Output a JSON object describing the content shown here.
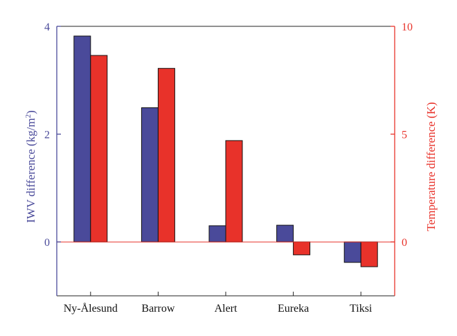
{
  "chart_data": {
    "type": "bar",
    "categories": [
      "Ny-Ålesund",
      "Barrow",
      "Alert",
      "Eureka",
      "Tiksi"
    ],
    "series": [
      {
        "axis": "left",
        "color": "#4a4a9a",
        "values": [
          3.82,
          2.49,
          0.3,
          0.31,
          -0.38
        ]
      },
      {
        "axis": "right",
        "color": "#e8322a",
        "values": [
          8.65,
          8.05,
          4.7,
          -0.6,
          -1.15
        ]
      }
    ],
    "y_left": {
      "label_main": "IWV difference (kg/m",
      "label_sup": "2",
      "label_end": ")",
      "range": [
        -1.0,
        4.0
      ],
      "ticks": [
        0,
        2,
        4
      ],
      "color": "#4a4a9a"
    },
    "y_right": {
      "label": "Temperature difference (K)",
      "range": [
        -2.5,
        10.0
      ],
      "ticks": [
        0,
        5,
        10
      ],
      "color": "#e8322a"
    },
    "zero_line_color": "#e8322a",
    "grid": false,
    "legend": "none"
  }
}
